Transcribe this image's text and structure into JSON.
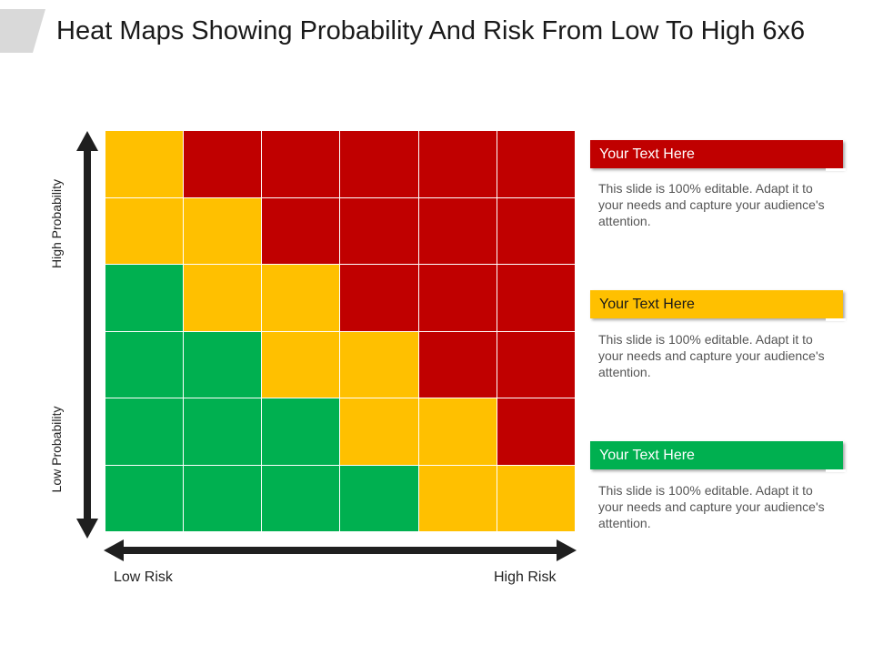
{
  "title": "Heat Maps Showing Probability And Risk From Low To High 6x6",
  "axes": {
    "y_high": "High Probability",
    "y_low": "Low Probability",
    "x_low": "Low Risk",
    "x_high": "High Risk"
  },
  "colors": {
    "red": "#c00000",
    "yellow": "#ffc000",
    "green": "#00b050",
    "axis": "#1f1f1f",
    "tab": "#d9d9d9"
  },
  "heatmap": [
    [
      "yellow",
      "red",
      "red",
      "red",
      "red",
      "red"
    ],
    [
      "yellow",
      "yellow",
      "red",
      "red",
      "red",
      "red"
    ],
    [
      "green",
      "yellow",
      "yellow",
      "red",
      "red",
      "red"
    ],
    [
      "green",
      "green",
      "yellow",
      "yellow",
      "red",
      "red"
    ],
    [
      "green",
      "green",
      "green",
      "yellow",
      "yellow",
      "red"
    ],
    [
      "green",
      "green",
      "green",
      "green",
      "yellow",
      "yellow"
    ]
  ],
  "panels": [
    {
      "header": "Your Text Here",
      "color": "#c00000",
      "body": "This slide is 100% editable. Adapt it to your needs and capture your audience's attention."
    },
    {
      "header": "Your Text Here",
      "color": "#ffc000",
      "body": "This slide is 100% editable. Adapt it to your needs and capture your audience's attention."
    },
    {
      "header": "Your Text Here",
      "color": "#00b050",
      "body": "This slide is 100% editable. Adapt it to your needs and capture your audience's attention."
    }
  ]
}
